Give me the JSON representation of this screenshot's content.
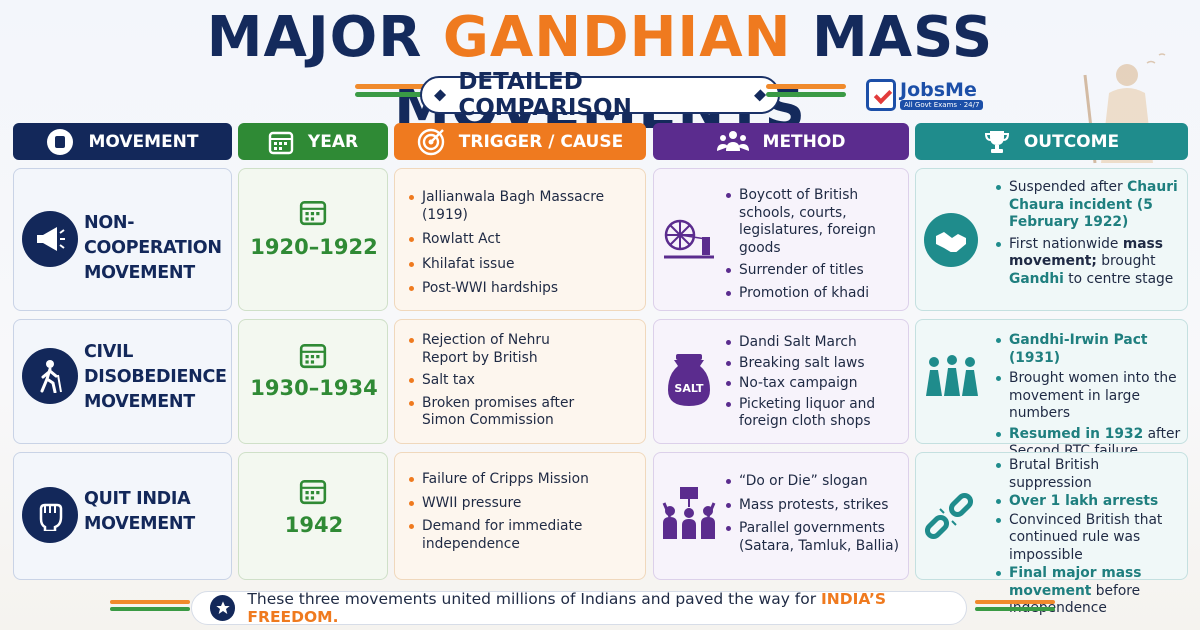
{
  "title": {
    "part1": "MAJOR ",
    "part2": "GANDHIAN",
    "part3": " MASS MOVEMENTS"
  },
  "subtitle": "DETAILED COMPARISON",
  "logo": {
    "name": "JobsMe",
    "tagline": "All Govt Exams · 24/7"
  },
  "headers": {
    "movement": "MOVEMENT",
    "year": "YEAR",
    "trigger": "TRIGGER / CAUSE",
    "method": "METHOD",
    "outcome": "OUTCOME"
  },
  "colors": {
    "navy": "#13285a",
    "green": "#2f8a35",
    "orange": "#ef7a1f",
    "purple": "#5b2c8e",
    "teal": "#1f8c8c"
  },
  "rows": [
    {
      "name_line1": "NON-COOPERATION",
      "name_line2": "MOVEMENT",
      "icon": "megaphone-icon",
      "year": "1920–1922",
      "triggers": [
        "Jallianwala Bagh Massacre (1919)",
        "Rowlatt Act",
        "Khilafat issue",
        "Post-WWI hardships"
      ],
      "method_icon": "charkha-icon",
      "methods": [
        "Boycott of British schools, courts, legislatures, foreign goods",
        "Surrender of titles",
        "Promotion of khadi"
      ],
      "outcome_icon": "handshake-icon",
      "outcomes": [
        {
          "a": "Suspended after ",
          "b": "Chauri Chaura incident (5 February 1922)",
          "c": ""
        },
        {
          "a": "First nationwide ",
          "b": "mass movement;",
          "c": " brought ",
          "d": "Gandhi",
          "e": " to centre stage"
        }
      ]
    },
    {
      "name_line1": "CIVIL",
      "name_line2": "DISOBEDIENCE",
      "name_line3": "MOVEMENT",
      "icon": "walking-man-icon",
      "year": "1930–1934",
      "triggers": [
        "Rejection of Nehru Report by British",
        "Salt tax",
        "Broken promises after Simon Commission"
      ],
      "method_icon": "salt-bag-icon",
      "method_icon_label": "SALT",
      "methods": [
        "Dandi Salt March",
        "Breaking salt laws",
        "No-tax campaign",
        "Picketing liquor and foreign cloth shops"
      ],
      "outcome_icon": "women-group-icon",
      "outcomes": [
        {
          "b": "Gandhi-Irwin Pact (1931)"
        },
        {
          "a": "Brought women into the movement in large numbers"
        },
        {
          "b": "Resumed in 1932",
          "c": " after Second RTC failure"
        }
      ]
    },
    {
      "name_line1": "QUIT INDIA",
      "name_line2": "MOVEMENT",
      "icon": "raised-fist-icon",
      "year": "1942",
      "triggers": [
        "Failure of Cripps Mission",
        "WWII pressure",
        "Demand for immediate independence"
      ],
      "method_icon": "protest-crowd-icon",
      "methods": [
        "“Do or Die” slogan",
        "Mass protests, strikes",
        "Parallel governments (Satara, Tamluk, Ballia)"
      ],
      "outcome_icon": "broken-chain-icon",
      "outcomes": [
        {
          "a": "Brutal British suppression"
        },
        {
          "b": "Over 1 lakh arrests"
        },
        {
          "a": "Convinced British that continued rule was impossible"
        },
        {
          "b": "Final major mass movement",
          "c": " before independence"
        }
      ]
    }
  ],
  "footer": {
    "text": "These three movements united millions of Indians and paved the way for ",
    "emphasis": "INDIA’S FREEDOM."
  }
}
